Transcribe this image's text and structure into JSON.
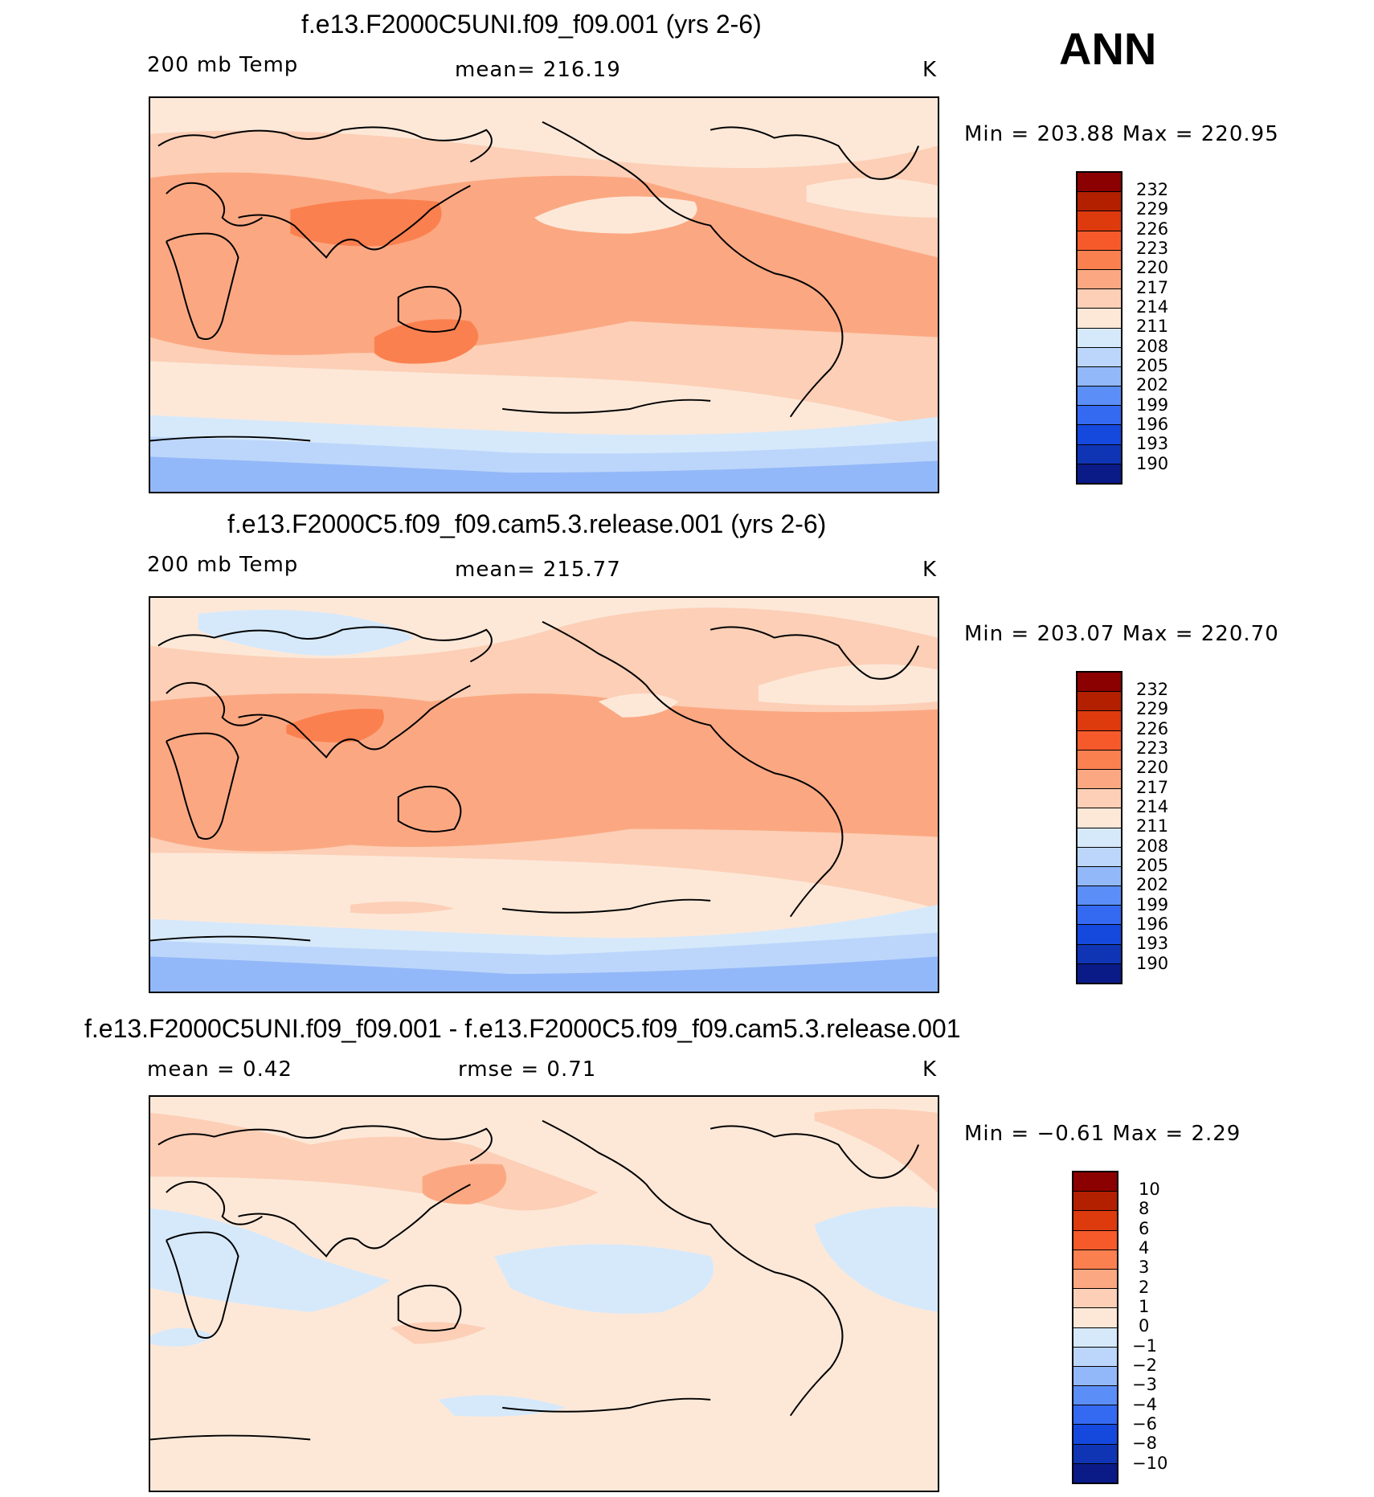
{
  "season": "ANN",
  "unit": "K",
  "panels": [
    {
      "title": "f.e13.F2000C5UNI.f09_f09.001 (yrs 2-6)",
      "left_label": "200 mb Temp",
      "mid_label": "mean=  216.19",
      "unit": "K",
      "minmax": "Min  =  203.88  Max  =  220.95",
      "colorbar": {
        "colors": [
          "#8b0000",
          "#b22000",
          "#dd3a0e",
          "#f65a2a",
          "#fb8050",
          "#fba882",
          "#fccfb6",
          "#fde8d8",
          "#d6e9fb",
          "#bcd6fb",
          "#93b8f9",
          "#5b8ef7",
          "#3469f1",
          "#1548dd",
          "#0f35b5",
          "#0a1a87"
        ],
        "labels": [
          "232",
          "229",
          "226",
          "223",
          "220",
          "217",
          "214",
          "211",
          "208",
          "205",
          "202",
          "199",
          "196",
          "193",
          "190"
        ]
      }
    },
    {
      "title": "f.e13.F2000C5.f09_f09.cam5.3.release.001 (yrs 2-6)",
      "left_label": "200 mb Temp",
      "mid_label": "mean=  215.77",
      "unit": "K",
      "minmax": "Min  =  203.07  Max  =  220.70",
      "colorbar": {
        "colors": [
          "#8b0000",
          "#b22000",
          "#dd3a0e",
          "#f65a2a",
          "#fb8050",
          "#fba882",
          "#fccfb6",
          "#fde8d8",
          "#d6e9fb",
          "#bcd6fb",
          "#93b8f9",
          "#5b8ef7",
          "#3469f1",
          "#1548dd",
          "#0f35b5",
          "#0a1a87"
        ],
        "labels": [
          "232",
          "229",
          "226",
          "223",
          "220",
          "217",
          "214",
          "211",
          "208",
          "205",
          "202",
          "199",
          "196",
          "193",
          "190"
        ]
      }
    },
    {
      "title": "f.e13.F2000C5UNI.f09_f09.001 - f.e13.F2000C5.f09_f09.cam5.3.release.001",
      "left_label": "mean  =     0.42",
      "mid_label": "rmse  =     0.71",
      "unit": "K",
      "minmax": "Min  =    −0.61  Max  =     2.29",
      "colorbar": {
        "colors": [
          "#8b0000",
          "#b22000",
          "#dd3a0e",
          "#f65a2a",
          "#fb8050",
          "#fba882",
          "#fccfb6",
          "#fde8d8",
          "#d6e9fb",
          "#bcd6fb",
          "#93b8f9",
          "#5b8ef7",
          "#3469f1",
          "#1548dd",
          "#0f35b5",
          "#0a1a87"
        ],
        "labels": [
          "10",
          "8",
          "6",
          "4",
          "3",
          "2",
          "1",
          "0",
          "−1",
          "−2",
          "−3",
          "−4",
          "−6",
          "−8",
          "−10"
        ]
      }
    }
  ]
}
